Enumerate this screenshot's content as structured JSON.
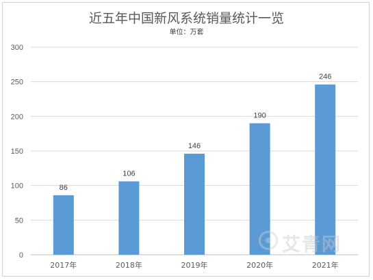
{
  "chart_data": {
    "type": "bar",
    "title": "近五年中国新风系统销量统计一览",
    "subtitle": "单位：万套",
    "categories": [
      "2017年",
      "2018年",
      "2019年",
      "2020年",
      "2021年"
    ],
    "values": [
      86,
      106,
      146,
      190,
      246
    ],
    "ylim": [
      0,
      300
    ],
    "yticks": [
      0,
      50,
      100,
      150,
      200,
      250,
      300
    ],
    "grid": true,
    "bar_color": "#5b9bd5",
    "data_labels": true
  },
  "watermark": {
    "text": "艾青网",
    "icon": "watermark-logo-icon"
  }
}
